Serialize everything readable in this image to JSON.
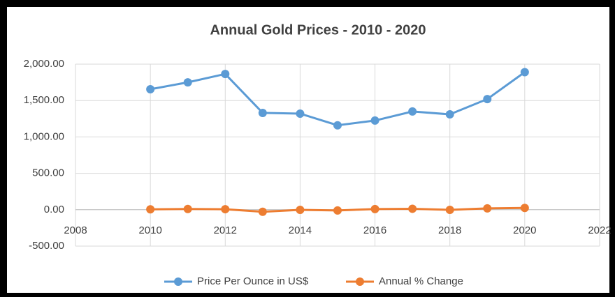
{
  "chart_data": {
    "type": "line",
    "title": "Annual Gold Prices - 2010 - 2020",
    "x": [
      2010,
      2011,
      2012,
      2013,
      2014,
      2015,
      2016,
      2017,
      2018,
      2019,
      2020
    ],
    "series": [
      {
        "name": "Price Per Ounce in US$",
        "color": "#5b9bd5",
        "values": [
          1655,
          1750,
          1865,
          1330,
          1320,
          1160,
          1225,
          1350,
          1310,
          1520,
          1890
        ]
      },
      {
        "name": "Annual % Change",
        "color": "#ed7d31",
        "values": [
          5,
          10,
          7,
          -28,
          -2,
          -10,
          9,
          13,
          -2,
          18,
          24
        ]
      }
    ],
    "xlim": [
      2008,
      2022
    ],
    "xticks": [
      2008,
      2010,
      2012,
      2014,
      2016,
      2018,
      2020,
      2022
    ],
    "ylim": [
      -500,
      2000
    ],
    "yticks": [
      {
        "value": -500,
        "label": "-500.00"
      },
      {
        "value": 0,
        "label": "0.00"
      },
      {
        "value": 500,
        "label": "500.00"
      },
      {
        "value": 1000,
        "label": "1,000.00"
      },
      {
        "value": 1500,
        "label": "1,500.00"
      },
      {
        "value": 2000,
        "label": "2,000.00"
      }
    ],
    "grid": true,
    "legend": "bottom"
  }
}
